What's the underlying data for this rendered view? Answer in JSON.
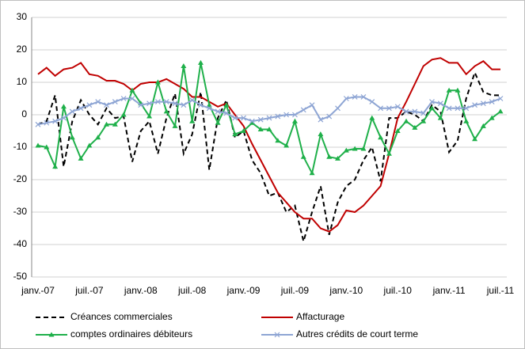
{
  "chart_data": {
    "type": "line",
    "categories": [
      "janv.-07",
      null,
      null,
      null,
      null,
      null,
      "juil.-07",
      null,
      null,
      null,
      null,
      null,
      "janv.-08",
      null,
      null,
      null,
      null,
      null,
      "juil.-08",
      null,
      null,
      null,
      null,
      null,
      "janv.-09",
      null,
      null,
      null,
      null,
      null,
      "juil.-09",
      null,
      null,
      null,
      null,
      null,
      "janv.-10",
      null,
      null,
      null,
      null,
      null,
      "juil.-10",
      null,
      null,
      null,
      null,
      null,
      "janv.-11",
      null,
      null,
      null,
      null,
      null,
      "juil.-11"
    ],
    "series": [
      {
        "name": "Créances commerciales",
        "color": "#000000",
        "dashed": true,
        "marker": "none",
        "values": [
          -3,
          -2,
          6,
          -16,
          -2,
          4.5,
          0,
          -3,
          2,
          -1,
          -0.5,
          -14.5,
          -5,
          -2,
          -12,
          -1,
          6.5,
          -12,
          -6,
          7,
          -17,
          -1,
          4.5,
          -7,
          -5,
          -14,
          -18,
          -25,
          -24,
          -30,
          -28,
          -39,
          -30,
          -22,
          -37,
          -27,
          -22,
          -20,
          -14,
          -10,
          -20.5,
          -1,
          -1,
          1,
          0,
          -2,
          3,
          1,
          -11.5,
          -8,
          5,
          13,
          7,
          6,
          6
        ]
      },
      {
        "name": "Affacturage",
        "color": "#c00000",
        "dashed": false,
        "marker": "none",
        "values": [
          12.5,
          14.5,
          12,
          14,
          14.5,
          16,
          12.5,
          12,
          10.5,
          10.5,
          9.5,
          7.5,
          9.5,
          10,
          10,
          11,
          9.5,
          8,
          5.5,
          5.5,
          4,
          2.5,
          3.5,
          0,
          -3.5,
          -9,
          -14,
          -19,
          -24,
          -27,
          -30,
          -32,
          -32,
          -35,
          -36,
          -34,
          -29.5,
          -30,
          -28,
          -25,
          -22,
          -12,
          -1,
          4,
          9.5,
          15,
          17,
          17.5,
          16,
          16,
          12.5,
          15,
          16.5,
          14,
          14
        ]
      },
      {
        "name": "comptes ordinaires débiteurs",
        "color": "#1fb04a",
        "dashed": false,
        "marker": "triangle",
        "values": [
          -9.5,
          -10,
          -16,
          2.5,
          -7,
          -13.5,
          -9.5,
          -7,
          -3,
          -3,
          0,
          7.5,
          3.5,
          -0.5,
          10,
          1,
          -3.5,
          15,
          -2,
          16,
          3,
          -2.5,
          3,
          -6,
          -5,
          -2.5,
          -4.5,
          -4.5,
          -8,
          -9.5,
          -2,
          -13,
          -18,
          -6,
          -13,
          -13.5,
          -11,
          -10.5,
          -10.5,
          -1,
          -7,
          -12,
          -5,
          -2,
          -4,
          -2,
          2,
          -1,
          7.5,
          7.5,
          -2,
          -7.5,
          -3.5,
          -1,
          1
        ]
      },
      {
        "name": "Autres crédits de court terme",
        "color": "#8ea5d4",
        "dashed": false,
        "marker": "x",
        "values": [
          -3,
          -2.5,
          -2,
          -1,
          1,
          2,
          3,
          4,
          3,
          4,
          5,
          5,
          3,
          3.5,
          4,
          4,
          3.5,
          3,
          4.5,
          3,
          2,
          1,
          0.5,
          -1,
          -1,
          -2,
          -1.5,
          -1,
          -0.5,
          0,
          0,
          1.5,
          3,
          -1.5,
          -0.5,
          2,
          5,
          5.5,
          5.5,
          4,
          2,
          2,
          2.5,
          1,
          1,
          0.5,
          4,
          3.5,
          2,
          2,
          2,
          3,
          3.5,
          4,
          5
        ]
      }
    ],
    "ylim": [
      -50,
      30
    ],
    "yticks": [
      -50,
      -40,
      -30,
      -20,
      -10,
      0,
      10,
      20,
      30
    ],
    "grid": true
  }
}
